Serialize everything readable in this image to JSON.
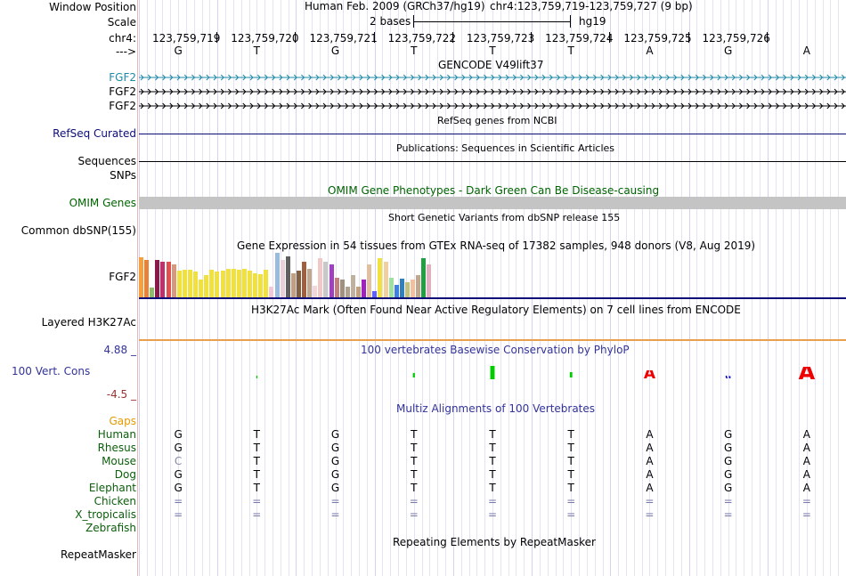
{
  "header": {
    "window_position_label": "Window Position",
    "scale_label": "Scale",
    "chrom_label": "chr4:",
    "strand_label": "--->",
    "assembly": "Human Feb. 2009 (GRCh37/hg19)",
    "position": "chr4:123,759,719-123,759,727 (9 bp)",
    "scale_text": "2 bases",
    "scale_db": "hg19",
    "coords": [
      "123,759,719",
      "123,759,720",
      "123,759,721",
      "123,759,722",
      "123,759,723",
      "123,759,724",
      "123,759,725",
      "123,759,726"
    ],
    "bases": [
      "G",
      "T",
      "G",
      "T",
      "T",
      "T",
      "A",
      "G",
      "A"
    ]
  },
  "tracks": {
    "gencode": {
      "title": "GENCODE V49lift37",
      "rows": [
        "FGF2",
        "FGF2",
        "FGF2"
      ],
      "colors": [
        "#1f8aa8",
        "#000000",
        "#000000"
      ]
    },
    "refseq": {
      "title": "RefSeq genes from NCBI",
      "label": "RefSeq Curated",
      "color": "#0c0c78"
    },
    "pubs": {
      "title": "Publications: Sequences in Scientific Articles",
      "label": "Sequences"
    },
    "snps_label": "SNPs",
    "omim": {
      "title": "OMIM Gene Phenotypes - Dark Green Can Be Disease-causing",
      "label": "OMIM Genes",
      "color": "#006400"
    },
    "dbsnp": {
      "title": "Short Genetic Variants from dbSNP release 155",
      "label": "Common dbSNP(155)"
    },
    "gtex": {
      "title": "Gene Expression in 54 tissues from GTEx RNA-seq of 17382 samples, 948 donors (V8, Aug 2019)",
      "label": "FGF2",
      "levels": [
        0.9,
        0.85,
        0.22,
        0.85,
        0.8,
        0.8,
        0.75,
        0.6,
        0.62,
        0.62,
        0.58,
        0.4,
        0.5,
        0.62,
        0.58,
        0.6,
        0.65,
        0.65,
        0.62,
        0.65,
        0.6,
        0.55,
        0.52,
        0.62,
        0.25,
        1.0,
        0.85,
        0.92,
        0.55,
        0.6,
        0.8,
        0.65,
        0.27,
        0.88,
        0.8,
        0.75,
        0.45,
        0.4,
        0.25,
        0.5,
        0.25,
        0.4,
        0.75,
        0.15,
        0.88,
        0.8,
        0.45,
        0.28,
        0.42,
        0.35,
        0.4,
        0.5,
        0.88,
        0.75
      ],
      "colors": [
        "#f5a040",
        "#e8813a",
        "#8fbc6a",
        "#8b1a4b",
        "#c0306a",
        "#e05050",
        "#d89880",
        "#f0e040",
        "#f0e040",
        "#f0e040",
        "#f0e040",
        "#f0e040",
        "#f0e040",
        "#f0e040",
        "#f0e040",
        "#f0e040",
        "#f0e040",
        "#f0e040",
        "#f0e040",
        "#f0e040",
        "#f0e040",
        "#f0e040",
        "#f0e040",
        "#f0e040",
        "#f0c8d8",
        "#99bbdd",
        "#e8d0d8",
        "#606060",
        "#c0a080",
        "#806040",
        "#a06040",
        "#c0a890",
        "#f0d8d8",
        "#f0c8c8",
        "#c8c8c8",
        "#a040c0",
        "#c08080",
        "#a09080",
        "#b0a090",
        "#c0b0a0",
        "#c0a080",
        "#a020c0",
        "#e0c0a0",
        "#6060ff",
        "#f0e040",
        "#f0d0a0",
        "#a0e0a0",
        "#4080e0",
        "#3080c0",
        "#c0c080",
        "#f0c0a0",
        "#c0a890",
        "#20a040",
        "#e0b0c0"
      ]
    },
    "h3k27ac": {
      "title": "H3K27Ac Mark (Often Found Near Active Regulatory Elements) on 7 cell lines from ENCODE",
      "label": "Layered H3K27Ac"
    },
    "phylop": {
      "title": "100 vertebrates Basewise Conservation by PhyloP",
      "label": "100 Vert. Cons",
      "ymax": "4.88 _",
      "ymin": "-4.5 _",
      "letters": [
        "",
        "T",
        "",
        "T",
        "T",
        "T",
        "A",
        "G",
        "A"
      ],
      "scores": [
        0,
        0.05,
        0,
        0.3,
        1.0,
        0.45,
        0.55,
        0.1,
        0.95
      ],
      "colors": [
        "#00aa00",
        "#00cc00",
        "#00cc00",
        "#00cc00",
        "#00cc00",
        "#00cc00",
        "#ee0000",
        "#0000cc",
        "#ee0000"
      ]
    },
    "multiz": {
      "title": "Multiz Alignments of 100 Vertebrates",
      "gaps_label": "Gaps",
      "species": [
        {
          "name": "Human",
          "seq": [
            "G",
            "T",
            "G",
            "T",
            "T",
            "T",
            "A",
            "G",
            "A"
          ]
        },
        {
          "name": "Rhesus",
          "seq": [
            "G",
            "T",
            "G",
            "T",
            "T",
            "T",
            "A",
            "G",
            "A"
          ]
        },
        {
          "name": "Mouse",
          "seq": [
            "C",
            "T",
            "G",
            "T",
            "T",
            "T",
            "A",
            "G",
            "A"
          ]
        },
        {
          "name": "Dog",
          "seq": [
            "G",
            "T",
            "G",
            "T",
            "T",
            "T",
            "A",
            "G",
            "A"
          ]
        },
        {
          "name": "Elephant",
          "seq": [
            "G",
            "T",
            "G",
            "T",
            "T",
            "T",
            "A",
            "G",
            "A"
          ]
        },
        {
          "name": "Chicken",
          "seq": [
            "=",
            "=",
            "=",
            "=",
            "=",
            "=",
            "=",
            "=",
            "="
          ]
        },
        {
          "name": "X_tropicalis",
          "seq": [
            "=",
            "=",
            "=",
            "=",
            "=",
            "=",
            "=",
            "=",
            "="
          ]
        },
        {
          "name": "Zebrafish",
          "seq": [
            "",
            "",
            "",
            "",
            "",
            "",
            "",
            "",
            ""
          ]
        }
      ]
    },
    "rmsk": {
      "title": "Repeating Elements by RepeatMasker",
      "label": "RepeatMasker"
    }
  }
}
